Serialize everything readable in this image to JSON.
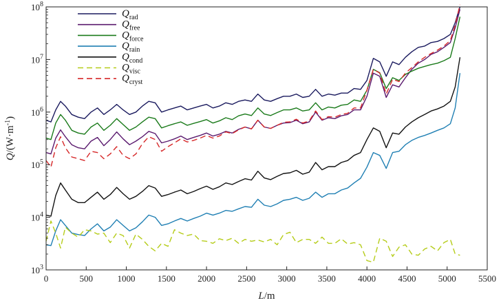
{
  "chart_data": {
    "type": "line",
    "xlabel_var": "L",
    "xlabel_unit": "/m",
    "ylabel_var": "Q",
    "ylabel_unit": "/(W·m",
    "ylabel_exp": "-1",
    "ylabel_close": ")",
    "xlim": [
      0,
      5500
    ],
    "ylim": [
      1000,
      100000000
    ],
    "yscale": "log",
    "xticks": [
      0,
      500,
      1000,
      1500,
      2000,
      2500,
      3000,
      3500,
      4000,
      4500,
      5000,
      5500
    ],
    "yticks": [
      {
        "value": 1000,
        "base": "10",
        "exp": "3"
      },
      {
        "value": 10000,
        "base": "10",
        "exp": "4"
      },
      {
        "value": 100000,
        "base": "10",
        "exp": "5"
      },
      {
        "value": 1000000,
        "base": "10",
        "exp": "6"
      },
      {
        "value": 10000000,
        "base": "10",
        "exp": "7"
      },
      {
        "value": 100000000,
        "base": "10",
        "exp": "8"
      }
    ],
    "legend_position": "top-left",
    "series": [
      {
        "sym": "Q",
        "sub": "rad",
        "color": "#1a1a5e",
        "dash": "",
        "x": [
          0,
          60,
          120,
          180,
          240,
          320,
          400,
          480,
          560,
          640,
          720,
          800,
          880,
          960,
          1040,
          1120,
          1200,
          1280,
          1360,
          1440,
          1520,
          1600,
          1680,
          1760,
          1840,
          1920,
          2000,
          2080,
          2160,
          2240,
          2320,
          2400,
          2480,
          2560,
          2640,
          2720,
          2800,
          2880,
          2960,
          3040,
          3120,
          3200,
          3280,
          3360,
          3440,
          3520,
          3600,
          3680,
          3760,
          3840,
          3920,
          4000,
          4080,
          4160,
          4240,
          4320,
          4400,
          4480,
          4560,
          4640,
          4720,
          4800,
          4880,
          4960,
          5040,
          5100,
          5160
        ],
        "y": [
          700000,
          650000,
          1100000,
          1600000,
          1300000,
          900000,
          800000,
          750000,
          1000000,
          1200000,
          900000,
          1100000,
          1400000,
          1100000,
          900000,
          1000000,
          1300000,
          1600000,
          1500000,
          1000000,
          1100000,
          1200000,
          1300000,
          1100000,
          1200000,
          1300000,
          1400000,
          1200000,
          1300000,
          1500000,
          1400000,
          1600000,
          1700000,
          1600000,
          2200000,
          1700000,
          1600000,
          1800000,
          2000000,
          2000000,
          2200000,
          1900000,
          2000000,
          2700000,
          2000000,
          2200000,
          2100000,
          2300000,
          2300000,
          2800000,
          2700000,
          4000000,
          10500000,
          9000000,
          4800000,
          9000000,
          8000000,
          11000000,
          14000000,
          17000000,
          18000000,
          21000000,
          22000000,
          25000000,
          30000000,
          50000000,
          100000000
        ]
      },
      {
        "sym": "Q",
        "sub": "free",
        "color": "#5a1a6e",
        "dash": "",
        "x": [
          0,
          60,
          120,
          180,
          240,
          320,
          400,
          480,
          560,
          640,
          720,
          800,
          880,
          960,
          1040,
          1120,
          1200,
          1280,
          1360,
          1440,
          1520,
          1600,
          1680,
          1760,
          1840,
          1920,
          2000,
          2080,
          2160,
          2240,
          2320,
          2400,
          2480,
          2560,
          2640,
          2720,
          2800,
          2880,
          2960,
          3040,
          3120,
          3200,
          3280,
          3360,
          3440,
          3520,
          3600,
          3680,
          3760,
          3840,
          3920,
          4000,
          4080,
          4160,
          4240,
          4320,
          4400,
          4480,
          4560,
          4640,
          4720,
          4800,
          4880,
          4960,
          5040,
          5100,
          5160
        ],
        "y": [
          170000,
          160000,
          320000,
          460000,
          340000,
          240000,
          210000,
          200000,
          280000,
          330000,
          230000,
          300000,
          420000,
          310000,
          240000,
          280000,
          340000,
          430000,
          390000,
          260000,
          280000,
          310000,
          350000,
          300000,
          330000,
          360000,
          400000,
          350000,
          380000,
          430000,
          400000,
          470000,
          520000,
          480000,
          700000,
          520000,
          490000,
          560000,
          620000,
          630000,
          700000,
          600000,
          650000,
          1000000,
          700000,
          780000,
          750000,
          850000,
          900000,
          1100000,
          1100000,
          2000000,
          5500000,
          4800000,
          1900000,
          3300000,
          3000000,
          4500000,
          6500000,
          8500000,
          10000000,
          12500000,
          14000000,
          17000000,
          21000000,
          40000000,
          90000000
        ]
      },
      {
        "sym": "Q",
        "sub": "force",
        "color": "#1a7a1a",
        "dash": "",
        "x": [
          0,
          60,
          120,
          180,
          240,
          320,
          400,
          480,
          560,
          640,
          720,
          800,
          880,
          960,
          1040,
          1120,
          1200,
          1280,
          1360,
          1440,
          1520,
          1600,
          1680,
          1760,
          1840,
          1920,
          2000,
          2080,
          2160,
          2240,
          2320,
          2400,
          2480,
          2560,
          2640,
          2720,
          2800,
          2880,
          2960,
          3040,
          3120,
          3200,
          3280,
          3360,
          3440,
          3520,
          3600,
          3680,
          3760,
          3840,
          3920,
          4000,
          4080,
          4160,
          4240,
          4320,
          4400,
          4480,
          4560,
          4640,
          4720,
          4800,
          4880,
          4960,
          5040,
          5100,
          5160
        ],
        "y": [
          320000,
          300000,
          620000,
          900000,
          700000,
          450000,
          400000,
          380000,
          520000,
          620000,
          450000,
          560000,
          750000,
          580000,
          450000,
          520000,
          650000,
          800000,
          750000,
          500000,
          550000,
          600000,
          650000,
          560000,
          610000,
          660000,
          720000,
          620000,
          680000,
          780000,
          720000,
          850000,
          920000,
          860000,
          1200000,
          920000,
          860000,
          980000,
          1100000,
          1100000,
          1200000,
          1050000,
          1100000,
          1500000,
          1100000,
          1250000,
          1200000,
          1350000,
          1400000,
          1700000,
          1600000,
          2600000,
          6500000,
          5600000,
          2800000,
          4500000,
          4000000,
          5200000,
          6000000,
          6800000,
          7400000,
          8000000,
          8500000,
          9500000,
          11000000,
          25000000,
          65000000
        ]
      },
      {
        "sym": "Q",
        "sub": "rain",
        "color": "#1f7fb3",
        "dash": "",
        "x": [
          0,
          60,
          120,
          180,
          240,
          320,
          400,
          480,
          560,
          640,
          720,
          800,
          880,
          960,
          1040,
          1120,
          1200,
          1280,
          1360,
          1440,
          1520,
          1600,
          1680,
          1760,
          1840,
          1920,
          2000,
          2080,
          2160,
          2240,
          2320,
          2400,
          2480,
          2560,
          2640,
          2720,
          2800,
          2880,
          2960,
          3040,
          3120,
          3200,
          3280,
          3360,
          3440,
          3520,
          3600,
          3680,
          3760,
          3840,
          3920,
          4000,
          4080,
          4160,
          4240,
          4320,
          4400,
          4480,
          4560,
          4640,
          4720,
          4800,
          4880,
          4960,
          5040,
          5100,
          5160
        ],
        "y": [
          3000,
          2900,
          5500,
          9000,
          7000,
          5000,
          4700,
          4500,
          6000,
          7500,
          5500,
          6500,
          9000,
          7000,
          5500,
          6300,
          8200,
          11000,
          10000,
          7000,
          7500,
          8500,
          9500,
          8500,
          9500,
          10500,
          12000,
          11000,
          12000,
          13500,
          13000,
          14500,
          16000,
          15500,
          22000,
          17000,
          16000,
          18000,
          21000,
          22000,
          24000,
          21000,
          23000,
          30000,
          24000,
          28000,
          28000,
          33000,
          36000,
          45000,
          55000,
          90000,
          170000,
          150000,
          85000,
          170000,
          180000,
          240000,
          290000,
          330000,
          360000,
          400000,
          450000,
          500000,
          600000,
          1200000,
          5500000
        ]
      },
      {
        "sym": "Q",
        "sub": "cond",
        "color": "#111111",
        "dash": "",
        "x": [
          0,
          60,
          120,
          180,
          240,
          320,
          400,
          480,
          560,
          640,
          720,
          800,
          880,
          960,
          1040,
          1120,
          1200,
          1280,
          1360,
          1440,
          1520,
          1600,
          1680,
          1760,
          1840,
          1920,
          2000,
          2080,
          2160,
          2240,
          2320,
          2400,
          2480,
          2560,
          2640,
          2720,
          2800,
          2880,
          2960,
          3040,
          3120,
          3200,
          3280,
          3360,
          3440,
          3520,
          3600,
          3680,
          3760,
          3840,
          3920,
          4000,
          4080,
          4160,
          4240,
          4320,
          4400,
          4480,
          4560,
          4640,
          4720,
          4800,
          4880,
          4960,
          5040,
          5100,
          5160
        ],
        "y": [
          11000,
          10500,
          26000,
          45000,
          33000,
          22000,
          19000,
          19000,
          24000,
          30000,
          22000,
          27000,
          37000,
          28000,
          22000,
          25000,
          31000,
          40000,
          36000,
          25000,
          27000,
          30000,
          33000,
          28000,
          31000,
          35000,
          39000,
          34000,
          38000,
          45000,
          42000,
          48000,
          54000,
          51000,
          75000,
          56000,
          52000,
          60000,
          68000,
          70000,
          78000,
          66000,
          72000,
          110000,
          80000,
          92000,
          92000,
          110000,
          120000,
          150000,
          170000,
          300000,
          500000,
          430000,
          210000,
          400000,
          380000,
          520000,
          650000,
          780000,
          900000,
          1050000,
          1150000,
          1300000,
          1600000,
          3000000,
          11000000
        ]
      },
      {
        "sym": "Q",
        "sub": "visc",
        "color": "#b5cc18",
        "dash": "8,5",
        "x": [
          0,
          60,
          120,
          180,
          240,
          320,
          400,
          480,
          560,
          640,
          720,
          800,
          880,
          960,
          1040,
          1120,
          1200,
          1280,
          1360,
          1440,
          1520,
          1600,
          1680,
          1760,
          1840,
          1920,
          2000,
          2080,
          2160,
          2240,
          2320,
          2400,
          2480,
          2560,
          2640,
          2720,
          2800,
          2880,
          2960,
          3040,
          3120,
          3200,
          3280,
          3360,
          3440,
          3520,
          3600,
          3680,
          3760,
          3840,
          3920,
          4000,
          4080,
          4160,
          4240,
          4320,
          4400,
          4480,
          4560,
          4640,
          4720,
          4800,
          4880,
          4960,
          5040,
          5100,
          5160
        ],
        "y": [
          3500,
          8500,
          5000,
          2600,
          6500,
          5000,
          4200,
          5800,
          5500,
          4800,
          5000,
          3300,
          5000,
          4500,
          2600,
          4800,
          3800,
          2800,
          2300,
          3200,
          2800,
          5800,
          5000,
          4500,
          4800,
          3600,
          3500,
          3200,
          3900,
          3600,
          4000,
          3200,
          3800,
          3500,
          3700,
          3400,
          3800,
          3000,
          4700,
          5200,
          3300,
          3800,
          3800,
          3200,
          4200,
          3200,
          3200,
          3900,
          3100,
          3300,
          3000,
          1500,
          1400,
          4000,
          3500,
          1800,
          2700,
          3000,
          2000,
          1900,
          2500,
          2800,
          2300,
          3300,
          3800,
          2000,
          1900
        ]
      },
      {
        "sym": "Q",
        "sub": "cryst",
        "color": "#d62728",
        "dash": "8,5",
        "x": [
          0,
          60,
          120,
          180,
          240,
          320,
          400,
          480,
          560,
          640,
          720,
          800,
          880,
          960,
          1040,
          1120,
          1200,
          1280,
          1360,
          1440,
          1520,
          1600,
          1680,
          1760,
          1840,
          1920,
          2000,
          2080,
          2160,
          2240,
          2320,
          2400,
          2480,
          2560,
          2640,
          2720,
          2800,
          2880,
          2960,
          3040,
          3120,
          3200,
          3280,
          3360,
          3440,
          3520,
          3600,
          3680,
          3760,
          3840,
          3920,
          4000,
          4080,
          4160,
          4240,
          4320,
          4400,
          4480,
          4560,
          4640,
          4720,
          4800,
          4880,
          4960,
          5040,
          5100,
          5160
        ],
        "y": [
          120000,
          90000,
          210000,
          340000,
          210000,
          140000,
          130000,
          120000,
          180000,
          170000,
          130000,
          160000,
          220000,
          150000,
          130000,
          160000,
          250000,
          340000,
          300000,
          180000,
          220000,
          260000,
          310000,
          270000,
          290000,
          320000,
          360000,
          320000,
          350000,
          420000,
          390000,
          460000,
          520000,
          480000,
          700000,
          520000,
          490000,
          560000,
          640000,
          650000,
          730000,
          620000,
          680000,
          1050000,
          720000,
          820000,
          800000,
          900000,
          950000,
          1200000,
          1200000,
          2600000,
          6500000,
          5500000,
          2200000,
          4200000,
          3800000,
          5500000,
          7000000,
          9000000,
          11000000,
          13000000,
          15000000,
          18000000,
          23000000,
          45000000,
          110000000
        ]
      }
    ]
  }
}
